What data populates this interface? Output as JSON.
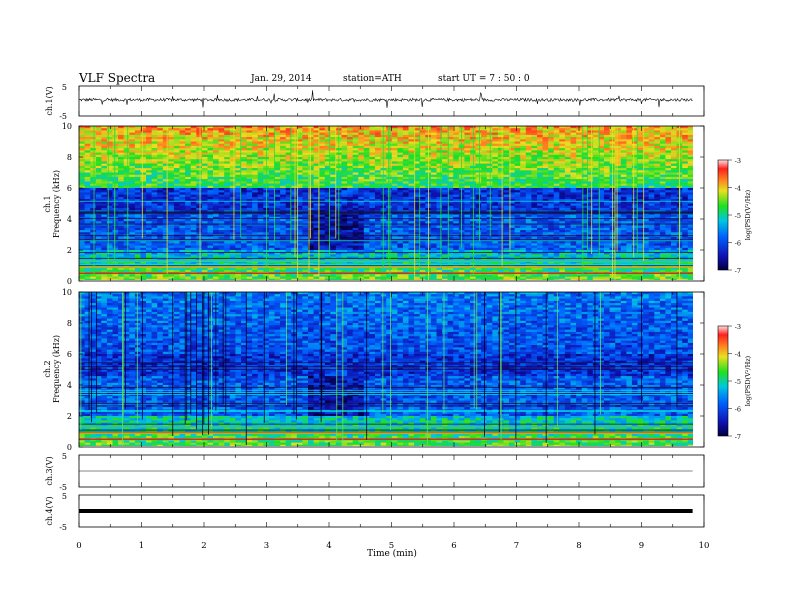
{
  "header": {
    "title": "VLF  Spectra",
    "date": "Jan. 29, 2014",
    "station": "station=ATH",
    "start": "start  UT =   7 : 50 : 0"
  },
  "chart_data": [
    {
      "type": "line",
      "panel": "ch1-waveform",
      "ylabel": "ch.1(V)",
      "yticks": [
        "5",
        "-5"
      ],
      "ylim": [
        -5,
        5
      ],
      "approx_baseline": 0.4,
      "approx_noise_amplitude": 1.0
    },
    {
      "type": "heatmap",
      "panel": "ch1-spectrogram",
      "channel_label": "ch.1",
      "ylabel": "Frequency (kHz)",
      "ylim": [
        0,
        10
      ],
      "yticks": [
        "0",
        "2",
        "4",
        "6",
        "8",
        "10"
      ],
      "colorbar": {
        "label": "log(PSD(V²/Hz)",
        "ticks": [
          "-3",
          "-4",
          "-5",
          "-6",
          "-7"
        ],
        "range": [
          -7,
          -3
        ]
      },
      "data_end_min": 9.83,
      "feature_change_min": 3.65
    },
    {
      "type": "heatmap",
      "panel": "ch2-spectrogram",
      "channel_label": "ch.2",
      "ylabel": "Frequency (kHz)",
      "ylim": [
        0,
        10
      ],
      "yticks": [
        "0",
        "2",
        "4",
        "6",
        "8",
        "10"
      ],
      "colorbar": {
        "label": "log(PSD(V²/Hz)",
        "ticks": [
          "-3",
          "-4",
          "-5",
          "-6",
          "-7"
        ],
        "range": [
          -7,
          -3
        ]
      },
      "data_end_min": 9.83,
      "feature_change_min": 3.65
    },
    {
      "type": "line",
      "panel": "ch3-waveform",
      "ylabel": "ch.3(V)",
      "yticks": [
        "5",
        "-5"
      ],
      "ylim": [
        -5,
        5
      ],
      "approx_baseline": 0.0
    },
    {
      "type": "line",
      "panel": "ch4-waveform",
      "ylabel": "ch.4(V)",
      "yticks": [
        "5",
        "-5"
      ],
      "ylim": [
        -5,
        5
      ],
      "approx_baseline": 0.0
    }
  ],
  "xaxis": {
    "xlabel": "Time  (min)",
    "ticks": [
      "0",
      "1",
      "2",
      "3",
      "4",
      "5",
      "6",
      "7",
      "8",
      "9",
      "10"
    ],
    "xlim": [
      0,
      10
    ]
  },
  "colors": {
    "black": "#000000"
  }
}
